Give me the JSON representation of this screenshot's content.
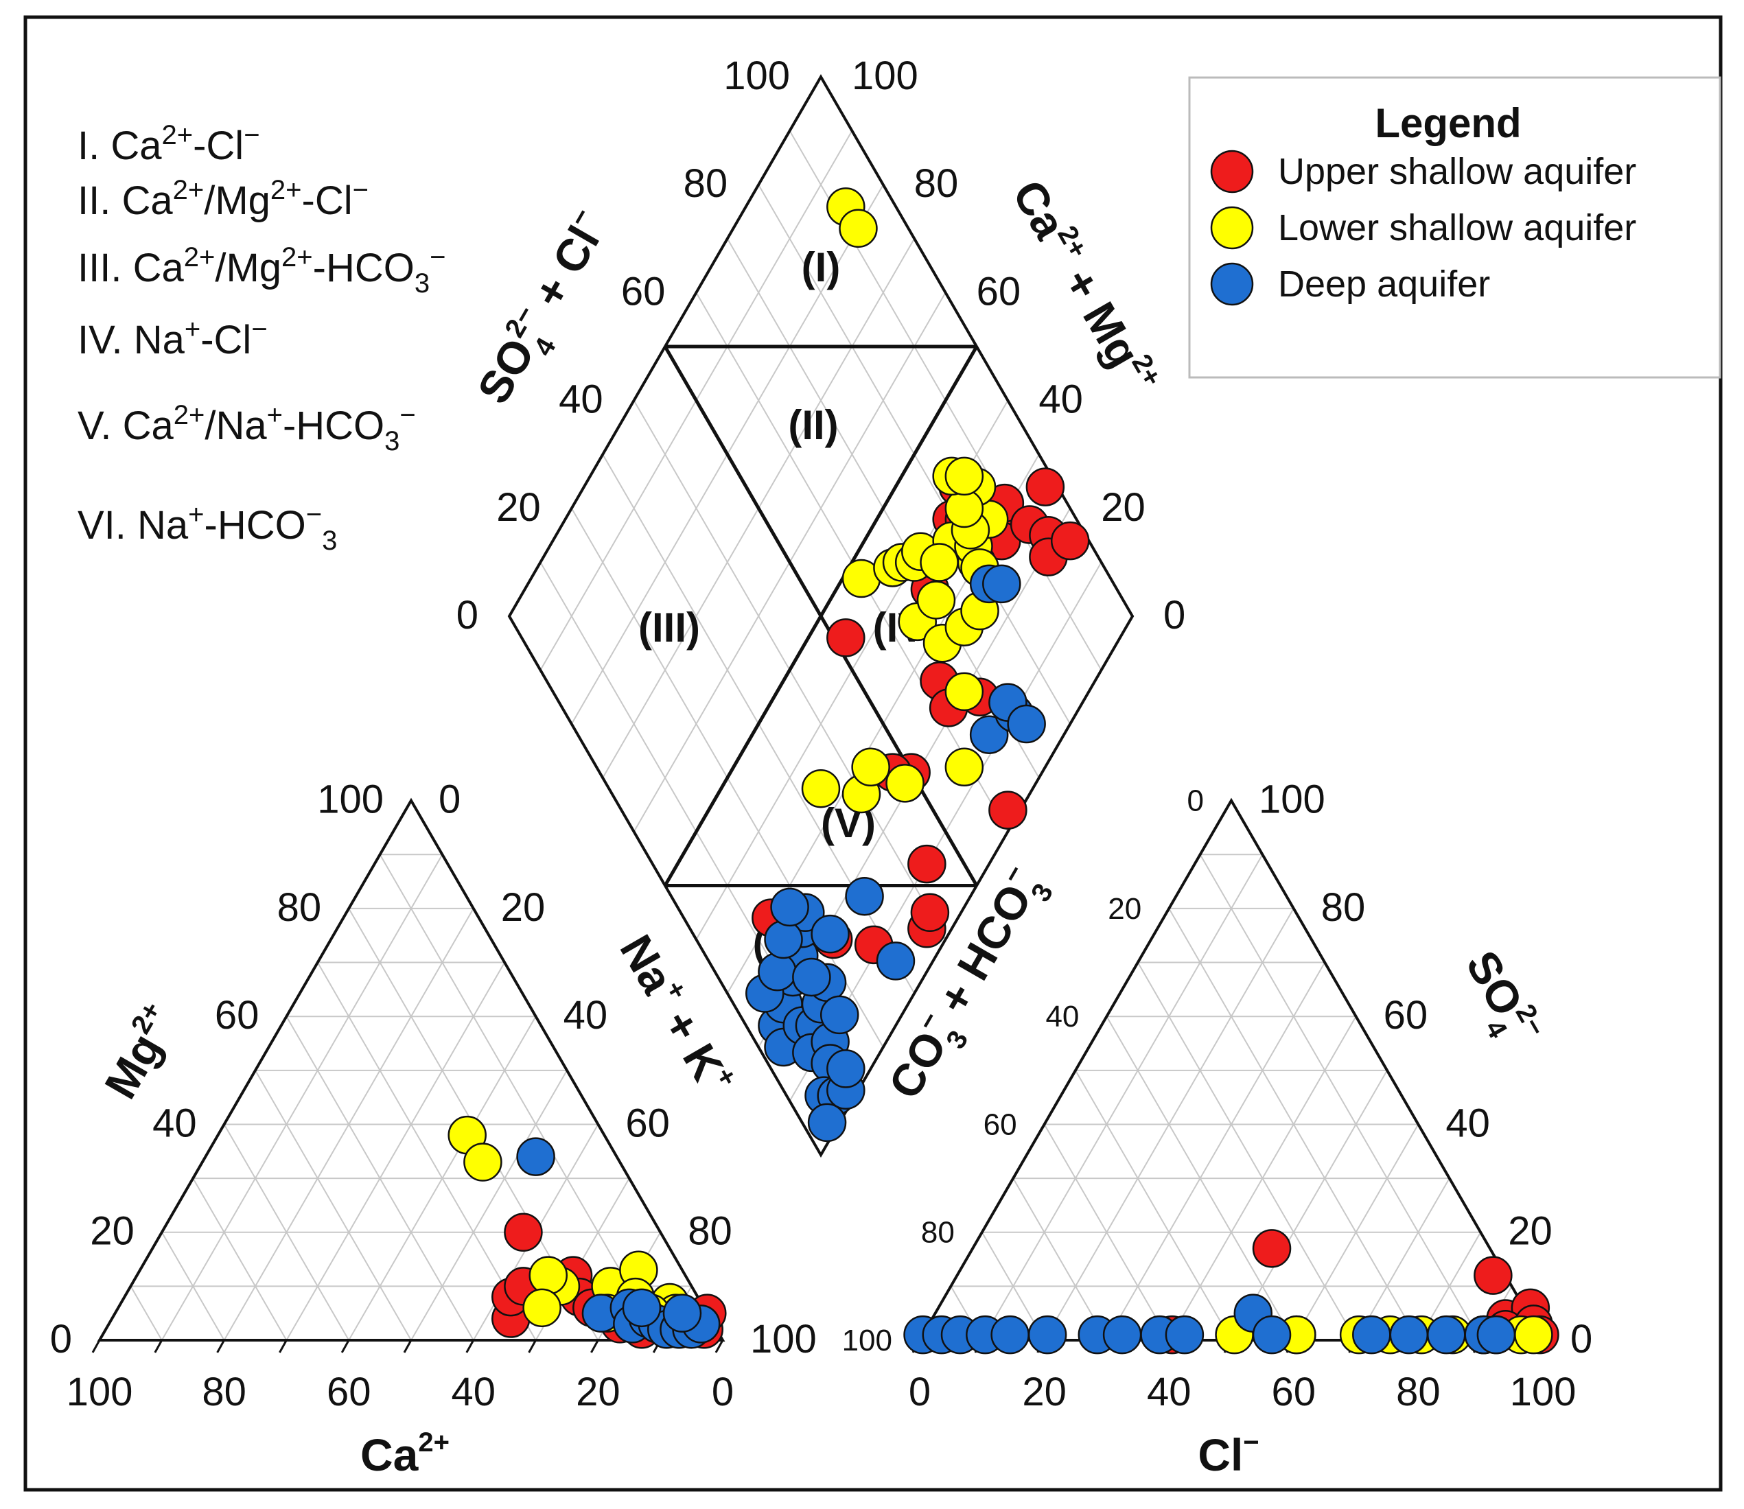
{
  "chart_data": {
    "type": "scatter",
    "subtype": "piper_diagram",
    "classification": [
      {
        "prefix": "I. Ca",
        "sup1": "2+",
        "mid1": "-Cl",
        "sup2": "−"
      },
      {
        "prefix": "II. Ca",
        "sup1": "2+",
        "mid1": "/Mg",
        "sup2": "2+",
        "mid2": "-Cl",
        "sup3": "−"
      },
      {
        "prefix": "III. Ca",
        "sup1": "2+",
        "mid1": "/Mg",
        "sup2": "2+",
        "mid2": "-HCO",
        "sub": "3",
        "sup3": "−"
      },
      {
        "prefix": "IV. Na",
        "sup1": "+",
        "mid1": "-Cl",
        "sup2": "−"
      },
      {
        "prefix": "V. Ca",
        "sup1": "2+",
        "mid1": "/Na",
        "sup2": "+",
        "mid2": "-HCO",
        "sub": "3",
        "sup3": "−"
      },
      {
        "prefix": "VI. Na",
        "sup1": "+",
        "mid1": "-HCO",
        "sub": "3",
        "sup2": "−"
      }
    ],
    "region_labels": [
      "(I)",
      "(II)",
      "(III)",
      "(IV)",
      "(V)",
      "(VI)"
    ],
    "ticks": {
      "cation_mg": [
        "0",
        "20",
        "40",
        "60",
        "80",
        "100"
      ],
      "cation_na": [
        "0",
        "20",
        "40",
        "60",
        "80",
        "100"
      ],
      "cation_ca": [
        "100",
        "80",
        "60",
        "40",
        "20",
        "0"
      ],
      "anion_cl": [
        "0",
        "20",
        "40",
        "60",
        "80",
        "100"
      ],
      "anion_so4": [
        "0",
        "20",
        "40",
        "60",
        "80",
        "100"
      ],
      "anion_co3": [
        "100",
        "80",
        "60",
        "40",
        "20",
        "0"
      ],
      "diamond_so4cl": [
        "0",
        "20",
        "40",
        "60",
        "80",
        "100"
      ],
      "diamond_camg": [
        "0",
        "20",
        "40",
        "60",
        "80",
        "100"
      ]
    },
    "axis_titles": {
      "mg": {
        "base": "Mg",
        "sup": "2+"
      },
      "ca": {
        "base": "Ca",
        "sup": "2+"
      },
      "nak": {
        "a": "Na",
        "sa": "+",
        "b": " + K",
        "sb": "+"
      },
      "so4": {
        "base": "SO",
        "sub": "4",
        "sup": "2−"
      },
      "cl": {
        "base": "Cl",
        "sup": "−"
      },
      "co3": {
        "a": "CO",
        "sub1": "3",
        "sup1": "−",
        "b": " + HCO",
        "sub2": "3",
        "sup2": "−"
      },
      "so4cl": {
        "a": "SO",
        "sub": "4",
        "sup": "2−",
        "b": " + Cl",
        "sup2": "−"
      },
      "camg": {
        "a": "Ca",
        "sup1": "2+",
        "b": " + Mg",
        "sup2": "2+"
      }
    },
    "legend": {
      "title": "Legend",
      "entries": [
        {
          "label": "Upper shallow aquifer",
          "color": "#ee1c1c"
        },
        {
          "label": "Lower shallow aquifer",
          "color": "#ffff00"
        },
        {
          "label": "Deep aquifer",
          "color": "#1f6fd1"
        }
      ]
    },
    "series": [
      {
        "name": "Upper shallow aquifer",
        "color": "#ee1c1c",
        "cations": [
          [
            58,
            20
          ],
          [
            64,
            4
          ],
          [
            62,
            8
          ],
          [
            63,
            10
          ],
          [
            70,
            12
          ],
          [
            73,
            8
          ],
          [
            80,
            6
          ],
          [
            88,
            6
          ],
          [
            92,
            3
          ],
          [
            96,
            2
          ],
          [
            95,
            5
          ],
          [
            85,
            4
          ],
          [
            82,
            3
          ],
          [
            76,
            6
          ],
          [
            86,
            2
          ]
        ],
        "anions": [
          [
            48,
            17
          ],
          [
            86,
            12
          ],
          [
            92,
            4
          ],
          [
            95,
            6
          ],
          [
            93,
            2
          ],
          [
            97,
            3
          ],
          [
            90,
            1
          ],
          [
            99,
            1
          ],
          [
            60,
            1
          ],
          [
            40,
            1
          ]
        ],
        "diamond": [
          [
            14,
            30
          ],
          [
            22,
            18
          ],
          [
            28,
            11
          ],
          [
            38,
            4
          ],
          [
            40,
            5
          ],
          [
            44,
            10
          ],
          [
            50,
            21
          ],
          [
            47,
            24
          ],
          [
            62,
            2
          ],
          [
            80,
            38
          ],
          [
            84,
            40
          ],
          [
            82,
            36
          ],
          [
            86,
            33
          ],
          [
            88,
            30
          ],
          [
            90,
            31
          ],
          [
            86,
            28
          ],
          [
            92,
            25
          ],
          [
            94,
            21
          ],
          [
            92,
            19
          ],
          [
            97,
            17
          ],
          [
            70,
            35
          ],
          [
            80,
            33
          ],
          [
            68,
            17
          ],
          [
            63,
            25
          ],
          [
            52,
            44
          ],
          [
            98,
            26
          ],
          [
            62,
            21
          ]
        ]
      },
      {
        "name": "Lower shallow aquifer",
        "color": "#ffff00",
        "cations": [
          [
            40,
            38
          ],
          [
            45,
            33
          ],
          [
            69,
            10
          ],
          [
            66,
            12
          ],
          [
            68,
            6
          ],
          [
            77,
            10
          ],
          [
            79,
            5
          ],
          [
            80,
            13
          ],
          [
            82,
            8
          ],
          [
            88,
            7
          ],
          [
            90,
            5
          ],
          [
            94,
            3
          ],
          [
            86,
            5
          ]
        ],
        "anions": [
          [
            60,
            1
          ],
          [
            70,
            1
          ],
          [
            75,
            1
          ],
          [
            80,
            1
          ],
          [
            85,
            1
          ],
          [
            90,
            1
          ],
          [
            92,
            1
          ],
          [
            96,
            1
          ],
          [
            98,
            1
          ],
          [
            50,
            1
          ]
        ],
        "diamond": [
          [
            92,
            84
          ],
          [
            92,
            80
          ],
          [
            34,
            34
          ],
          [
            40,
            27
          ],
          [
            59,
            13
          ],
          [
            44,
            28
          ],
          [
            48,
            21
          ],
          [
            66,
            20
          ],
          [
            65,
            34
          ],
          [
            67,
            28
          ],
          [
            60,
            47
          ],
          [
            66,
            43
          ],
          [
            68,
            42
          ],
          [
            70,
            40
          ],
          [
            72,
            40
          ],
          [
            78,
            36
          ],
          [
            80,
            30
          ],
          [
            81,
            32
          ],
          [
            84,
            35
          ],
          [
            86,
            32
          ],
          [
            82,
            34
          ],
          [
            87,
            37
          ],
          [
            83,
            37
          ],
          [
            84,
            42
          ],
          [
            86,
            40
          ],
          [
            72,
            26
          ],
          [
            76,
            25
          ],
          [
            80,
            29
          ],
          [
            70,
            33
          ],
          [
            74,
            36
          ]
        ]
      },
      {
        "name": "Deep aquifer",
        "color": "#1f6fd1",
        "cations": [
          [
            53,
            34
          ],
          [
            78,
            5
          ],
          [
            82,
            6
          ],
          [
            84,
            3
          ],
          [
            86,
            4
          ],
          [
            88,
            3
          ],
          [
            90,
            2
          ],
          [
            92,
            2
          ],
          [
            94,
            2
          ],
          [
            95,
            3
          ],
          [
            91,
            5
          ],
          [
            84,
            6
          ]
        ],
        "anions": [
          [
            0,
            1
          ],
          [
            3,
            1
          ],
          [
            6,
            1
          ],
          [
            10,
            1
          ],
          [
            14,
            1
          ],
          [
            20,
            1
          ],
          [
            28,
            1
          ],
          [
            32,
            1
          ],
          [
            38,
            1
          ],
          [
            42,
            1
          ],
          [
            51,
            5
          ],
          [
            56,
            1
          ],
          [
            72,
            1
          ],
          [
            78,
            1
          ],
          [
            84,
            1
          ],
          [
            90,
            1
          ],
          [
            92,
            1
          ]
        ],
        "diamond": [
          [
            31,
            17
          ],
          [
            80,
            26
          ],
          [
            82,
            24
          ],
          [
            66,
            12
          ],
          [
            72,
            10
          ],
          [
            72,
            12
          ],
          [
            73,
            7
          ],
          [
            30,
            6
          ],
          [
            5,
            19
          ],
          [
            8,
            20
          ],
          [
            12,
            21
          ],
          [
            15,
            22
          ],
          [
            18,
            24
          ],
          [
            20,
            25
          ],
          [
            6,
            24
          ],
          [
            10,
            24
          ],
          [
            14,
            26
          ],
          [
            18,
            28
          ],
          [
            4,
            16
          ],
          [
            9,
            15
          ],
          [
            11,
            13
          ],
          [
            14,
            14
          ],
          [
            17,
            15
          ],
          [
            8,
            11
          ],
          [
            12,
            9
          ],
          [
            16,
            10
          ],
          [
            10,
            7
          ],
          [
            6,
            5
          ],
          [
            8,
            3
          ],
          [
            4,
            2
          ],
          [
            10,
            2
          ],
          [
            12,
            4
          ],
          [
            15,
            18
          ],
          [
            22,
            19
          ]
        ]
      }
    ]
  }
}
